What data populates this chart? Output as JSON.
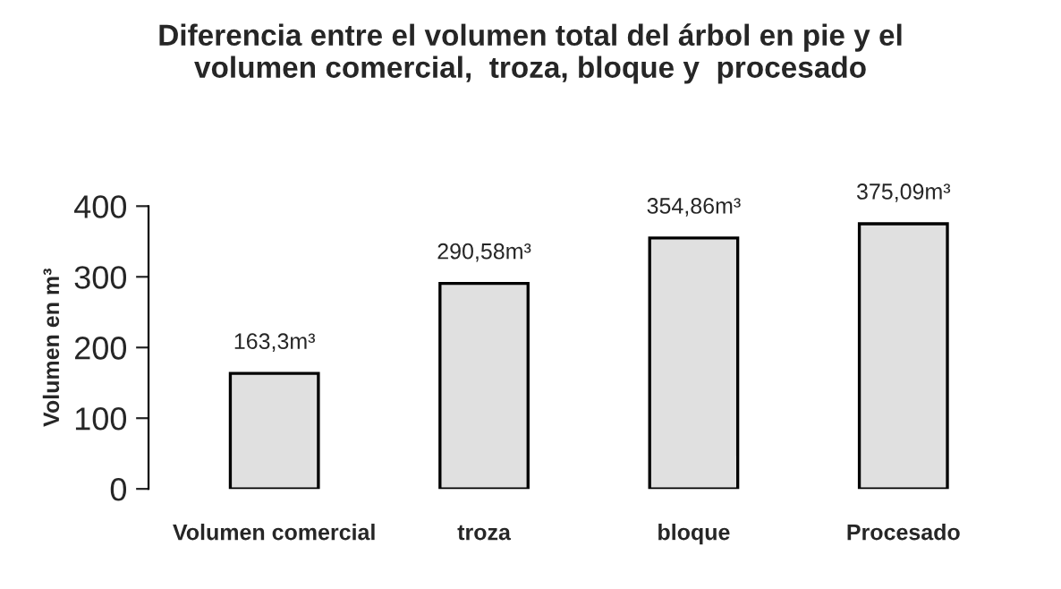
{
  "chart_data": {
    "type": "bar",
    "title": "Diferencia entre el volumen total del árbol en pie y el\nvolumen comercial,  troza, bloque y  procesado",
    "ylabel": "Volumen en m³",
    "categories": [
      "Volumen comercial",
      "troza",
      "bloque",
      "Procesado"
    ],
    "values": [
      163.3,
      290.58,
      354.86,
      375.09
    ],
    "value_labels": [
      "163,3m³",
      "290,58m³",
      "354,86m³",
      "375,09m³"
    ],
    "color": "#e0e0e0",
    "ylim": [
      0,
      400
    ],
    "yticks": [
      0,
      100,
      200,
      300,
      400
    ],
    "grid": false,
    "legend": false
  }
}
